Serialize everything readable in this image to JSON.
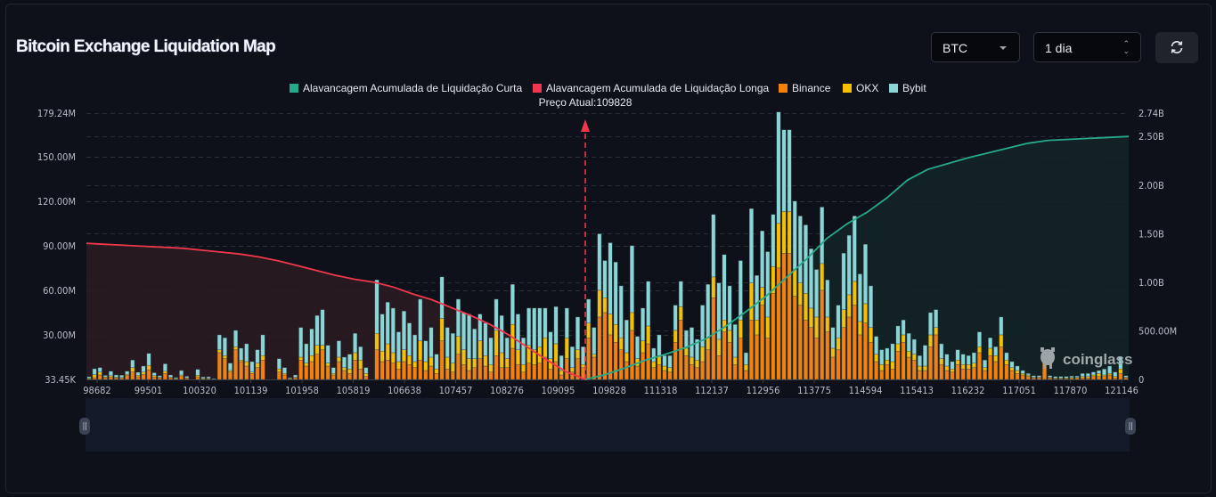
{
  "header": {
    "title": "Bitcoin Exchange Liquidation Map",
    "symbol_select": "BTC",
    "timeframe_select": "1 dia",
    "refresh_icon": "refresh-icon"
  },
  "watermark": "coinglass",
  "chart_data": {
    "type": "bar",
    "title": "Bitcoin Exchange Liquidation Map",
    "current_price_label": "Preço Atual:109828",
    "current_price": 109828,
    "legend_position": "top-center",
    "legend": [
      {
        "name": "Alavancagem Acumulada de Liquidação Curta",
        "color": "#26a98b"
      },
      {
        "name": "Alavancagem Acumulada de Liquidação Longa",
        "color": "#f0374d"
      },
      {
        "name": "Binance",
        "color": "#f7800b"
      },
      {
        "name": "OKX",
        "color": "#f6c000"
      },
      {
        "name": "Bybit",
        "color": "#8ad5d6"
      }
    ],
    "left_axis": {
      "ticks": [
        "33.45K",
        "30.00M",
        "60.00M",
        "90.00M",
        "120.00M",
        "150.00M",
        "179.24M"
      ],
      "tick_values": [
        33450,
        30000000,
        60000000,
        90000000,
        120000000,
        150000000,
        179240000
      ],
      "range": [
        0,
        179240000
      ]
    },
    "right_axis": {
      "ticks": [
        "0",
        "500.00M",
        "1.00B",
        "1.50B",
        "2.00B",
        "2.50B",
        "2.74B"
      ],
      "tick_values": [
        0,
        500000000,
        1000000000,
        1500000000,
        2000000000,
        2500000000,
        2740000000
      ],
      "range": [
        0,
        2740000000
      ]
    },
    "x_ticks": [
      "98682",
      "99501",
      "100320",
      "101139",
      "101958",
      "105819",
      "106638",
      "107457",
      "108276",
      "109095",
      "109828",
      "111318",
      "112137",
      "112956",
      "113775",
      "114594",
      "115413",
      "116232",
      "117051",
      "117870",
      "121146"
    ],
    "grid": true,
    "bars_millions": {
      "binance": [
        0.5,
        1.2,
        3,
        1.2,
        1.5,
        1,
        0.8,
        2.5,
        5,
        1.8,
        3.5,
        6.5,
        1.5,
        1,
        4,
        1,
        0.5,
        2,
        0.8,
        0,
        1.8,
        0.5,
        0.6,
        0,
        18,
        14,
        5,
        20,
        12,
        9,
        4,
        8,
        13,
        0,
        0,
        5,
        3,
        0.5,
        1,
        13,
        9,
        12,
        17,
        20,
        9,
        3,
        12,
        6,
        4,
        13,
        7,
        2,
        0,
        20,
        12,
        13,
        11,
        7,
        12,
        10,
        8,
        13,
        6,
        9,
        4,
        26,
        7,
        5,
        17,
        10,
        6,
        8,
        14,
        9,
        5,
        16,
        8,
        8,
        21,
        10,
        5,
        11,
        10,
        11,
        15,
        7,
        12,
        3,
        14,
        5,
        14,
        8,
        28,
        15,
        42,
        45,
        30,
        25,
        20,
        12,
        33,
        9,
        18,
        24,
        8,
        10,
        6,
        5,
        25,
        40,
        16,
        10,
        8,
        12,
        20,
        55,
        16,
        32,
        25,
        10,
        28,
        6,
        40,
        30,
        50,
        28,
        58,
        75,
        85,
        85,
        56,
        50,
        40,
        35,
        28,
        60,
        32,
        15,
        20,
        35,
        42,
        50,
        30,
        38,
        25,
        12,
        6,
        10,
        7,
        19,
        25,
        15,
        13,
        6,
        6,
        22,
        30,
        10,
        6,
        5,
        10,
        7,
        7,
        8,
        18,
        6,
        16,
        12,
        22,
        10,
        6,
        4,
        3,
        2,
        1,
        1,
        14,
        1,
        0.5,
        0.5,
        0.5,
        1,
        1,
        1,
        1,
        2,
        2,
        2,
        3,
        1,
        4,
        1
      ],
      "okx": [
        0.3,
        2,
        2,
        0.5,
        1,
        0.5,
        0.5,
        1,
        3,
        1,
        1.5,
        3,
        1,
        0.5,
        1.5,
        0.5,
        0.2,
        1,
        0.3,
        0,
        1,
        0.2,
        0.2,
        0,
        2,
        2,
        1,
        2,
        1,
        3,
        1,
        3,
        3,
        0,
        0,
        2,
        1,
        0.2,
        0.5,
        2,
        2,
        4,
        6,
        3,
        2,
        1,
        3,
        2,
        3,
        5,
        6,
        2,
        0,
        11,
        7,
        11,
        7,
        5,
        8,
        6,
        4,
        13,
        6,
        6,
        3,
        15,
        8,
        6,
        12,
        10,
        8,
        6,
        12,
        7,
        5,
        17,
        10,
        6,
        16,
        10,
        5,
        12,
        10,
        11,
        13,
        7,
        12,
        3,
        14,
        3,
        6,
        2,
        10,
        2,
        18,
        10,
        14,
        12,
        8,
        6,
        12,
        5,
        8,
        12,
        4,
        6,
        3,
        3,
        8,
        9,
        5,
        5,
        5,
        10,
        8,
        14,
        11,
        8,
        8,
        5,
        12,
        4,
        25,
        10,
        12,
        14,
        18,
        30,
        28,
        28,
        18,
        15,
        18,
        13,
        14,
        18,
        10,
        6,
        8,
        12,
        15,
        16,
        9,
        13,
        10,
        5,
        4,
        3,
        5,
        5,
        5,
        4,
        4,
        3,
        3,
        8,
        5,
        4,
        3,
        2,
        3,
        3,
        3,
        3,
        4,
        2,
        5,
        4,
        8,
        3,
        2,
        2,
        1,
        1,
        0.5,
        0.5,
        0,
        0.5,
        0.5,
        0.5,
        0.5,
        0.3,
        0.3,
        1,
        1,
        1,
        2,
        1,
        1,
        1,
        3,
        0.5
      ],
      "bybit": [
        1,
        4,
        3,
        1,
        3,
        1.5,
        1.5,
        2,
        5,
        2,
        4,
        8,
        2,
        1,
        5,
        1.5,
        0.6,
        3,
        1,
        0,
        4,
        1,
        1,
        0.5,
        10,
        12,
        5,
        11,
        8,
        12,
        7,
        9,
        14,
        0,
        0,
        7,
        4,
        0.5,
        1.5,
        20,
        13,
        18,
        20,
        24,
        12,
        4,
        11,
        7,
        10,
        13,
        9,
        4,
        0,
        36,
        25,
        28,
        30,
        20,
        26,
        22,
        18,
        28,
        14,
        20,
        10,
        28,
        20,
        20,
        25,
        25,
        30,
        20,
        18,
        22,
        18,
        21,
        25,
        14,
        27,
        24,
        18,
        25,
        28,
        26,
        20,
        18,
        25,
        10,
        20,
        14,
        22,
        12,
        16,
        18,
        38,
        25,
        48,
        42,
        35,
        22,
        45,
        15,
        22,
        30,
        9,
        14,
        7,
        8,
        17,
        17,
        12,
        20,
        14,
        28,
        36,
        42,
        38,
        44,
        30,
        22,
        40,
        8,
        50,
        30,
        38,
        44,
        35,
        75,
        55,
        55,
        46,
        45,
        46,
        40,
        32,
        38,
        25,
        14,
        22,
        38,
        40,
        44,
        32,
        40,
        28,
        12,
        10,
        8,
        12,
        12,
        10,
        12,
        10,
        7,
        14,
        15,
        12,
        10,
        8,
        5,
        7,
        7,
        6,
        7,
        10,
        5,
        7,
        6,
        12,
        5,
        4,
        3,
        2,
        1,
        1,
        1,
        0,
        1,
        1,
        1,
        1,
        1,
        1,
        2,
        2,
        2,
        2,
        4,
        5,
        3,
        8,
        1
      ]
    },
    "cumulative_long_billions": {
      "note_x_range": "98682 to 109828",
      "values": [
        1.4,
        1.39,
        1.38,
        1.37,
        1.36,
        1.35,
        1.33,
        1.31,
        1.29,
        1.26,
        1.22,
        1.17,
        1.12,
        1.07,
        1.03,
        1.0,
        0.95,
        0.88,
        0.82,
        0.74,
        0.66,
        0.57,
        0.46,
        0.33,
        0.2,
        0.08,
        0.0
      ]
    },
    "cumulative_short_billions": {
      "note_x_range": "109828 to 121146+",
      "values": [
        0.0,
        0.05,
        0.12,
        0.2,
        0.26,
        0.33,
        0.42,
        0.55,
        0.7,
        0.86,
        1.05,
        1.24,
        1.45,
        1.6,
        1.72,
        1.87,
        2.05,
        2.16,
        2.22,
        2.28,
        2.33,
        2.38,
        2.43,
        2.46,
        2.47,
        2.48,
        2.49,
        2.5
      ]
    }
  },
  "slider": {
    "left_handle_icon": "drag-handle-icon",
    "right_handle_icon": "drag-handle-icon"
  }
}
